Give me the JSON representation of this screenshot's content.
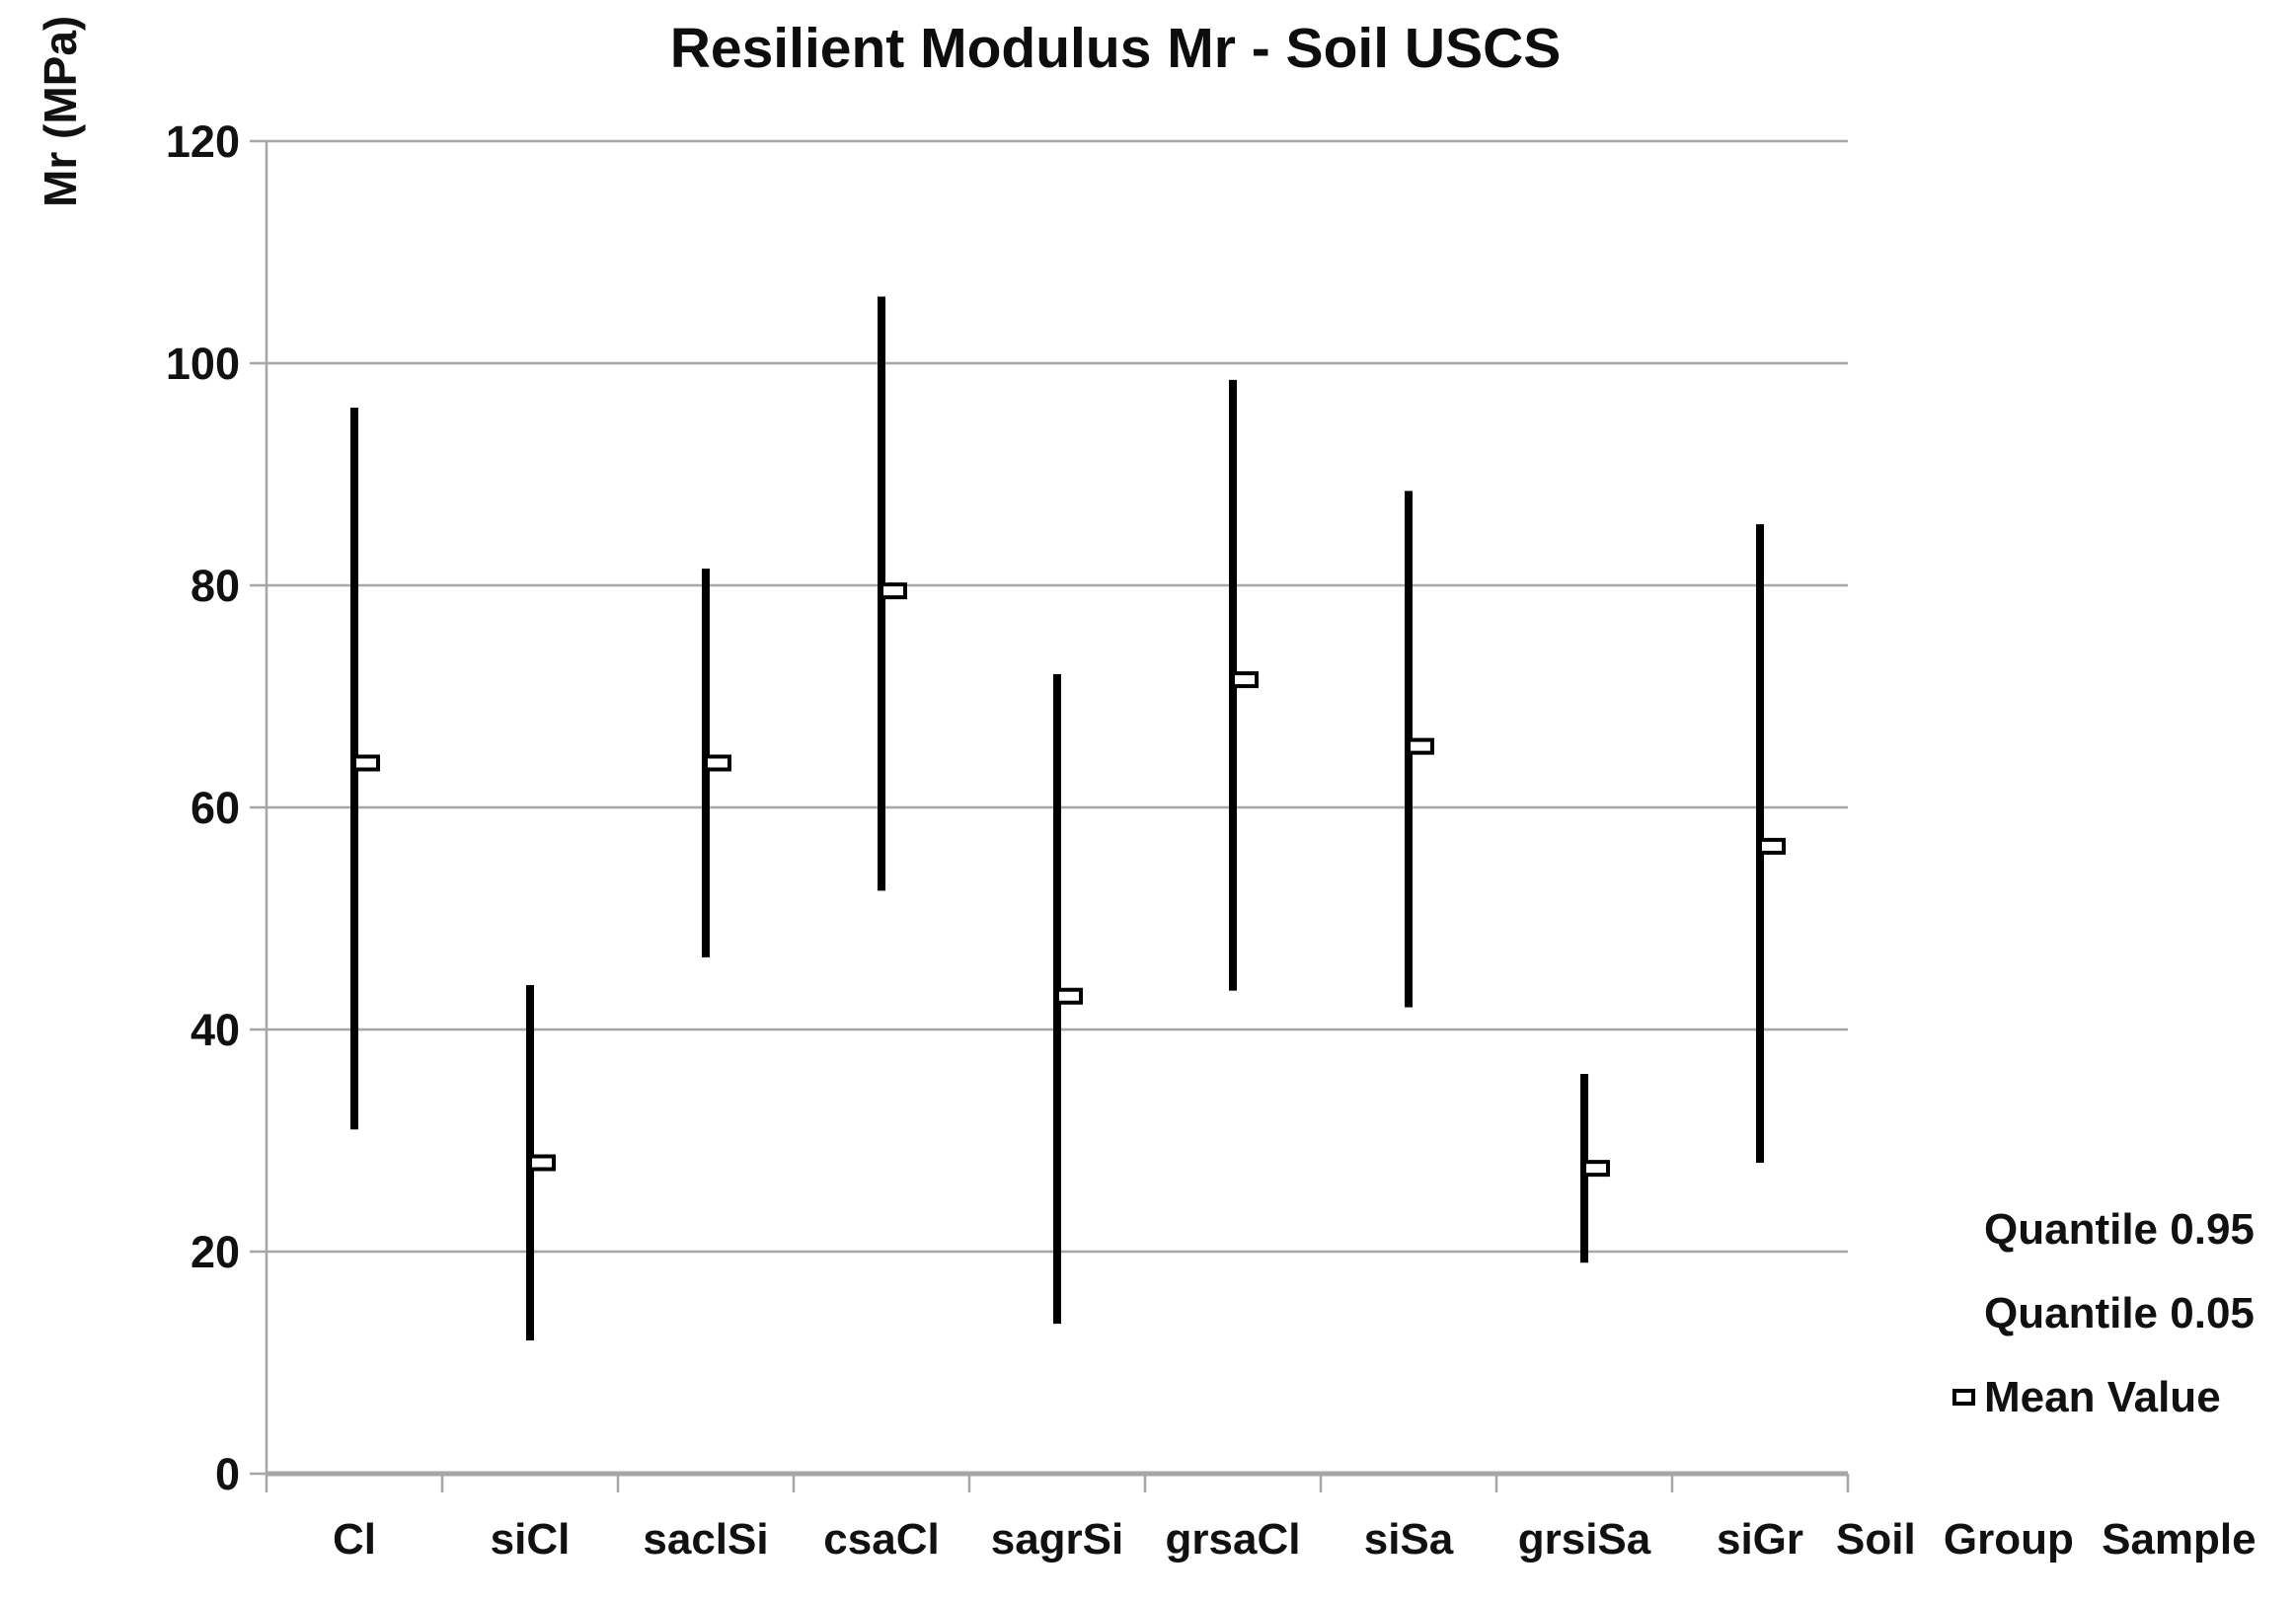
{
  "title": "Resilient Modulus Mr - Soil USCS",
  "y_axis": {
    "label": "Mr (MPa)",
    "ticks": [
      0,
      20,
      40,
      60,
      80,
      100,
      120
    ]
  },
  "x_axis": {
    "title": "Soil Group Sample"
  },
  "legend": {
    "entries": [
      {
        "label": "Quantile 0.95",
        "marker": "none"
      },
      {
        "label": "Quantile 0.05",
        "marker": "none"
      },
      {
        "label": "Mean Value",
        "marker": "square"
      }
    ]
  },
  "chart_data": {
    "type": "range-bar",
    "title": "Resilient Modulus Mr - Soil USCS",
    "xlabel": "Soil Group Sample",
    "ylabel": "Mr (MPa)",
    "ylim": [
      0,
      120
    ],
    "grid": true,
    "legend_position": "right",
    "categories": [
      "Cl",
      "siCl",
      "saclSi",
      "csaCl",
      "sagrSi",
      "grsaCl",
      "siSa",
      "grsiSa",
      "siGr"
    ],
    "series": [
      {
        "name": "Quantile 0.95",
        "values": [
          96,
          44,
          81.5,
          106,
          72,
          98.5,
          88.5,
          36,
          85.5
        ]
      },
      {
        "name": "Quantile 0.05",
        "values": [
          31,
          12,
          46.5,
          52.5,
          13.5,
          43.5,
          42,
          19,
          28
        ]
      },
      {
        "name": "Mean Value",
        "values": [
          64,
          28,
          64,
          79.5,
          43,
          71.5,
          65.5,
          27.5,
          56.5
        ]
      }
    ]
  },
  "colors": {
    "series_line": "#000000",
    "gridline": "#a6a6a6",
    "axis_line": "#a6a6a6",
    "marker_fill": "#ffffff",
    "marker_border": "#000000",
    "text": "#111111"
  }
}
